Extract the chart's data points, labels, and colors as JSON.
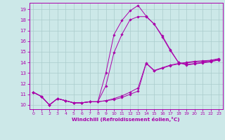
{
  "xlabel": "Windchill (Refroidissement éolien,°C)",
  "bg_color": "#cce8e8",
  "line_color": "#aa00aa",
  "grid_color": "#aacccc",
  "tick_color": "#aa00aa",
  "xlim": [
    -0.5,
    23.5
  ],
  "ylim": [
    9.6,
    19.6
  ],
  "xticks": [
    0,
    1,
    2,
    3,
    4,
    5,
    6,
    7,
    8,
    9,
    10,
    11,
    12,
    13,
    14,
    15,
    16,
    17,
    18,
    19,
    20,
    21,
    22,
    23
  ],
  "yticks": [
    10,
    11,
    12,
    13,
    14,
    15,
    16,
    17,
    18,
    19
  ],
  "lines": [
    [
      11.2,
      10.8,
      10.0,
      10.6,
      10.4,
      10.2,
      10.2,
      10.3,
      10.3,
      10.4,
      10.5,
      10.7,
      11.0,
      11.3,
      13.9,
      13.2,
      13.45,
      13.7,
      13.85,
      13.95,
      14.05,
      14.1,
      14.15,
      14.3
    ],
    [
      11.2,
      10.8,
      10.0,
      10.6,
      10.4,
      10.2,
      10.2,
      10.3,
      10.3,
      10.4,
      10.6,
      10.85,
      11.2,
      11.6,
      13.95,
      13.25,
      13.5,
      13.75,
      13.9,
      14.0,
      14.1,
      14.15,
      14.2,
      14.35
    ],
    [
      11.2,
      10.8,
      10.0,
      10.6,
      10.4,
      10.2,
      10.2,
      10.3,
      10.3,
      13.0,
      16.6,
      17.95,
      18.85,
      19.35,
      18.35,
      17.6,
      16.5,
      15.2,
      14.0,
      13.75,
      13.85,
      13.95,
      14.05,
      14.25
    ],
    [
      11.2,
      10.8,
      10.0,
      10.6,
      10.4,
      10.2,
      10.2,
      10.3,
      10.3,
      11.8,
      14.9,
      16.65,
      18.0,
      18.3,
      18.3,
      17.6,
      16.4,
      15.1,
      14.0,
      13.8,
      13.9,
      14.0,
      14.1,
      14.2
    ]
  ]
}
